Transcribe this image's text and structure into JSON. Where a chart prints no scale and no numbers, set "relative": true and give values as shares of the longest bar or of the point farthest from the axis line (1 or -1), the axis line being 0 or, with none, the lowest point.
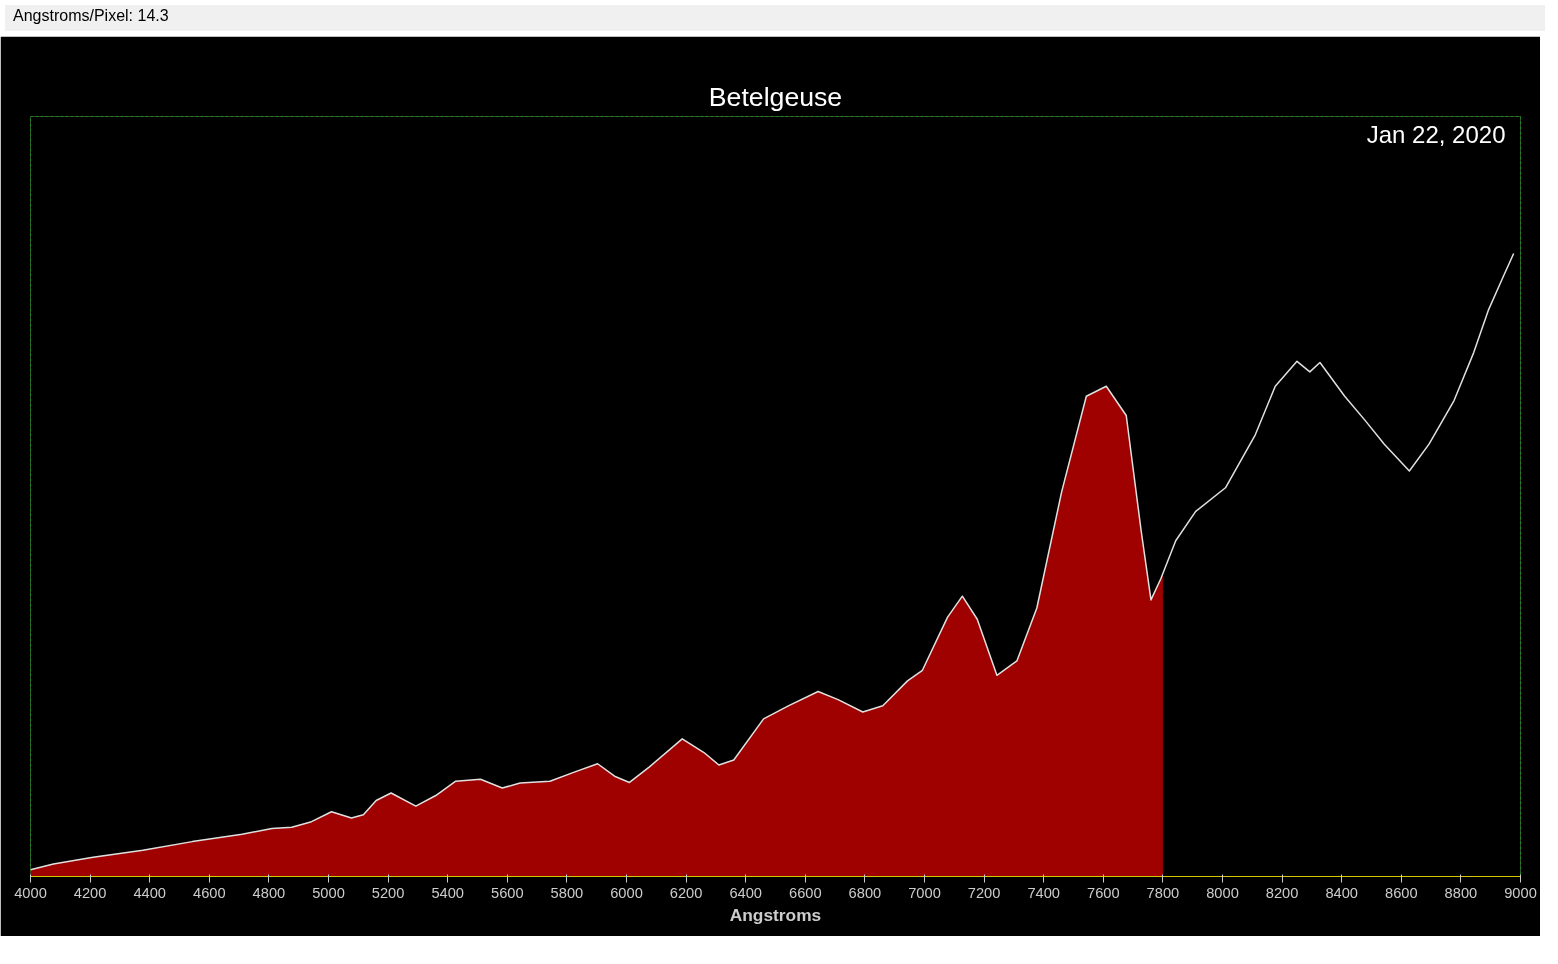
{
  "chart_data": {
    "type": "line",
    "title": "Betelgeuse",
    "xlabel": "Angstroms",
    "annotations": [
      "Angstroms/Pixel: 14.3",
      "Jan 22, 2020"
    ],
    "relative": true,
    "xlim": [
      4000,
      9000
    ],
    "xticks": [
      4000,
      4200,
      4400,
      4600,
      4800,
      5000,
      5200,
      5400,
      5600,
      5800,
      6000,
      6200,
      6400,
      6600,
      6800,
      7000,
      7200,
      7400,
      7600,
      7800,
      8000,
      8200,
      8400,
      8600,
      8800,
      9000
    ],
    "grid": false,
    "marker": "none",
    "line_style": "solid",
    "series": [
      {
        "type": "area",
        "color": "#b00000",
        "x": [
          4000,
          4077,
          4210,
          4377,
          4543,
          4710,
          4810,
          4877,
          4943,
          5010,
          5077,
          5117,
          5160,
          5210,
          5293,
          5360,
          5427,
          5510,
          5583,
          5643,
          5743,
          5827,
          5903,
          5960,
          6010,
          6077,
          6187,
          6260,
          6310,
          6360,
          6460,
          6543,
          6643,
          6710,
          6793,
          6860,
          6943,
          6993,
          7077,
          7127,
          7177,
          7243,
          7310,
          7377,
          7460,
          7543,
          7610,
          7677,
          7727,
          7760,
          7793,
          7800
        ],
        "values": [
          0.011,
          0.02,
          0.031,
          0.042,
          0.056,
          0.068,
          0.077,
          0.079,
          0.088,
          0.104,
          0.094,
          0.099,
          0.122,
          0.134,
          0.113,
          0.13,
          0.153,
          0.156,
          0.142,
          0.15,
          0.153,
          0.168,
          0.181,
          0.161,
          0.151,
          0.176,
          0.221,
          0.199,
          0.179,
          0.187,
          0.253,
          0.274,
          0.297,
          0.284,
          0.264,
          0.274,
          0.314,
          0.331,
          0.416,
          0.45,
          0.413,
          0.323,
          0.346,
          0.431,
          0.617,
          0.771,
          0.787,
          0.74,
          0.555,
          0.444,
          0.478,
          0.485
        ]
      },
      {
        "color": "#e0e0e0",
        "x": [
          4000,
          4077,
          4210,
          4377,
          4543,
          4710,
          4810,
          4877,
          4943,
          5010,
          5077,
          5117,
          5160,
          5210,
          5293,
          5360,
          5427,
          5510,
          5583,
          5643,
          5743,
          5827,
          5903,
          5960,
          6010,
          6077,
          6187,
          6260,
          6310,
          6360,
          6460,
          6543,
          6643,
          6710,
          6793,
          6860,
          6943,
          6993,
          7077,
          7127,
          7177,
          7243,
          7310,
          7377,
          7460,
          7543,
          7610,
          7677,
          7727,
          7760,
          7793,
          7843,
          7910,
          8010,
          8110,
          8177,
          8250,
          8293,
          8327,
          8410,
          8477,
          8543,
          8627,
          8693,
          8777,
          8843,
          8893,
          8943,
          8977
        ],
        "values": [
          0.011,
          0.02,
          0.031,
          0.042,
          0.056,
          0.068,
          0.077,
          0.079,
          0.088,
          0.104,
          0.094,
          0.099,
          0.122,
          0.134,
          0.113,
          0.13,
          0.153,
          0.156,
          0.142,
          0.15,
          0.153,
          0.168,
          0.181,
          0.161,
          0.151,
          0.176,
          0.221,
          0.199,
          0.179,
          0.187,
          0.253,
          0.274,
          0.297,
          0.284,
          0.264,
          0.274,
          0.314,
          0.331,
          0.416,
          0.45,
          0.413,
          0.323,
          0.346,
          0.431,
          0.617,
          0.771,
          0.787,
          0.74,
          0.555,
          0.444,
          0.478,
          0.539,
          0.586,
          0.624,
          0.709,
          0.787,
          0.827,
          0.81,
          0.825,
          0.771,
          0.733,
          0.694,
          0.651,
          0.694,
          0.764,
          0.841,
          0.91,
          0.964,
          1.0
        ]
      }
    ]
  }
}
